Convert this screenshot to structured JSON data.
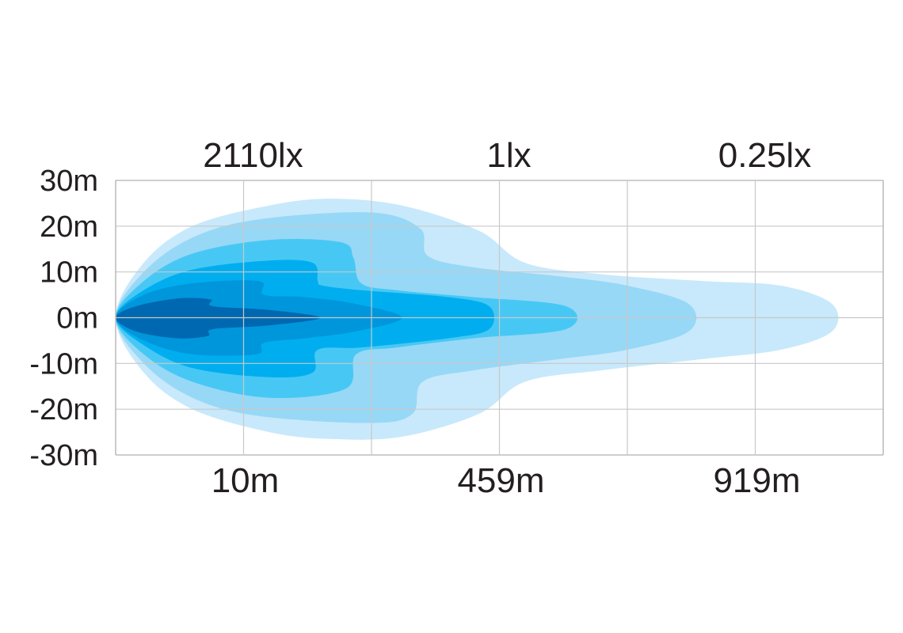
{
  "chart_data": {
    "type": "area",
    "title": "",
    "xlabel": "",
    "ylabel": "",
    "xlim": [
      0,
      1500
    ],
    "ylim": [
      -30,
      30
    ],
    "grid": true,
    "y_ticks": [
      {
        "value": 30,
        "label": "30m"
      },
      {
        "value": 20,
        "label": "20m"
      },
      {
        "value": 10,
        "label": "10m"
      },
      {
        "value": 0,
        "label": "0m"
      },
      {
        "value": -10,
        "label": "-10m"
      },
      {
        "value": -20,
        "label": "-20m"
      },
      {
        "value": -30,
        "label": "-30m"
      }
    ],
    "x_grid": [
      0,
      250,
      500,
      750,
      1000,
      1250,
      1500
    ],
    "top_labels": [
      {
        "x": 250,
        "label": "2110lx"
      },
      {
        "x": 750,
        "label": "1lx"
      },
      {
        "x": 1250,
        "label": "0.25lx"
      }
    ],
    "bottom_labels": [
      {
        "x": 250,
        "label": "10m"
      },
      {
        "x": 750,
        "label": "459m"
      },
      {
        "x": 1250,
        "label": "919m"
      }
    ],
    "zones": [
      {
        "color": "#c8e9fb",
        "outline": [
          [
            0,
            0
          ],
          [
            55,
            12
          ],
          [
            150,
            20
          ],
          [
            300,
            24.5
          ],
          [
            420,
            26
          ],
          [
            560,
            24.5
          ],
          [
            710,
            19
          ],
          [
            800,
            12
          ],
          [
            950,
            9.5
          ],
          [
            1150,
            8
          ],
          [
            1300,
            7
          ],
          [
            1400,
            3
          ],
          [
            1400,
            -3
          ],
          [
            1300,
            -7
          ],
          [
            1150,
            -9
          ],
          [
            950,
            -11.5
          ],
          [
            800,
            -14
          ],
          [
            710,
            -21
          ],
          [
            560,
            -26
          ],
          [
            420,
            -26.5
          ],
          [
            300,
            -25
          ],
          [
            150,
            -20
          ],
          [
            55,
            -12
          ]
        ]
      },
      {
        "color": "#97d8f6",
        "outline": [
          [
            0,
            0
          ],
          [
            55,
            10
          ],
          [
            150,
            17.5
          ],
          [
            280,
            21.5
          ],
          [
            500,
            23
          ],
          [
            595,
            19.5
          ],
          [
            610,
            13.5
          ],
          [
            700,
            11
          ],
          [
            870,
            9
          ],
          [
            1000,
            7
          ],
          [
            1120,
            3
          ],
          [
            1120,
            -3
          ],
          [
            1000,
            -7
          ],
          [
            870,
            -9
          ],
          [
            700,
            -11.5
          ],
          [
            600,
            -14
          ],
          [
            580,
            -21
          ],
          [
            500,
            -23
          ],
          [
            280,
            -21.5
          ],
          [
            150,
            -17.5
          ],
          [
            55,
            -10
          ]
        ]
      },
      {
        "color": "#47c8f4",
        "outline": [
          [
            0,
            0
          ],
          [
            55,
            8
          ],
          [
            150,
            14
          ],
          [
            300,
            17
          ],
          [
            440,
            16.5
          ],
          [
            465,
            13
          ],
          [
            480,
            7.5
          ],
          [
            550,
            6
          ],
          [
            700,
            4.5
          ],
          [
            880,
            2.5
          ],
          [
            880,
            -2.5
          ],
          [
            700,
            -4.5
          ],
          [
            550,
            -6.5
          ],
          [
            470,
            -8
          ],
          [
            450,
            -15.5
          ],
          [
            300,
            -17.5
          ],
          [
            150,
            -14
          ],
          [
            55,
            -8
          ]
        ]
      },
      {
        "color": "#00aeef",
        "outline": [
          [
            0,
            0
          ],
          [
            55,
            6
          ],
          [
            150,
            10.5
          ],
          [
            300,
            12.5
          ],
          [
            385,
            12
          ],
          [
            395,
            8
          ],
          [
            405,
            7
          ],
          [
            480,
            6
          ],
          [
            650,
            4.5
          ],
          [
            730,
            2.5
          ],
          [
            730,
            -2.5
          ],
          [
            650,
            -4.5
          ],
          [
            480,
            -6.5
          ],
          [
            395,
            -7
          ],
          [
            385,
            -12
          ],
          [
            300,
            -13
          ],
          [
            150,
            -11
          ],
          [
            55,
            -6
          ]
        ]
      },
      {
        "color": "#0096dc",
        "outline": [
          [
            0,
            0
          ],
          [
            55,
            5
          ],
          [
            150,
            7.5
          ],
          [
            280,
            8
          ],
          [
            290,
            5
          ],
          [
            370,
            4.5
          ],
          [
            470,
            3
          ],
          [
            560,
            0
          ],
          [
            470,
            -3
          ],
          [
            370,
            -4.5
          ],
          [
            290,
            -5.5
          ],
          [
            275,
            -8
          ],
          [
            150,
            -8
          ],
          [
            55,
            -5
          ]
        ]
      },
      {
        "color": "#0068b0",
        "outline": [
          [
            0,
            0
          ],
          [
            40,
            2.5
          ],
          [
            120,
            4.2
          ],
          [
            185,
            4
          ],
          [
            190,
            2.5
          ],
          [
            300,
            1.7
          ],
          [
            400,
            0
          ],
          [
            300,
            -1.7
          ],
          [
            190,
            -2.5
          ],
          [
            180,
            -4
          ],
          [
            120,
            -4.5
          ],
          [
            40,
            -3
          ]
        ]
      }
    ]
  }
}
